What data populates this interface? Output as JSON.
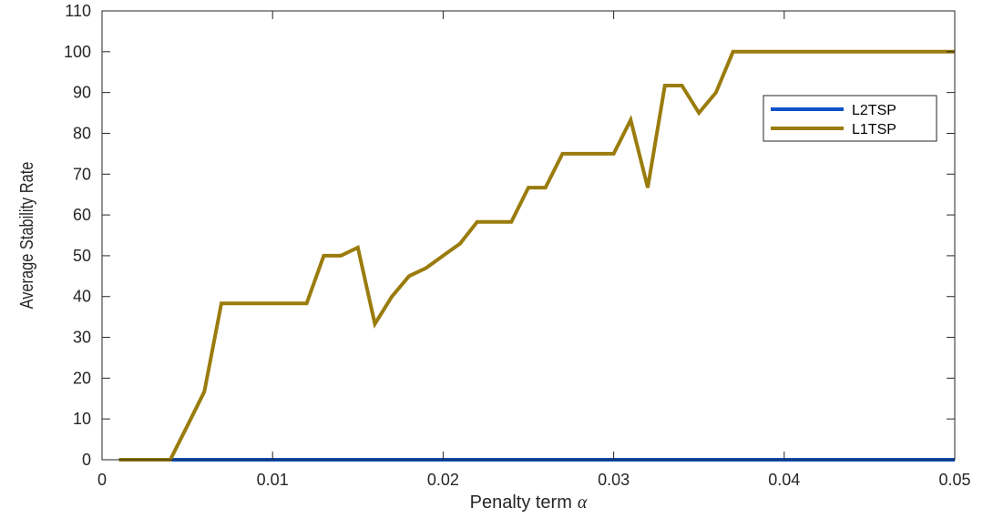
{
  "chart_data": {
    "type": "line",
    "xlabel": "Penalty term",
    "xlabel_symbol": "α",
    "ylabel": "Average Stability Rate",
    "xlim": [
      0,
      0.05
    ],
    "ylim": [
      0,
      110
    ],
    "x_ticks": [
      0,
      0.01,
      0.02,
      0.03,
      0.04,
      0.05
    ],
    "x_tick_labels": [
      "0",
      "0.01",
      "0.02",
      "0.03",
      "0.04",
      "0.05"
    ],
    "y_ticks": [
      0,
      10,
      20,
      30,
      40,
      50,
      60,
      70,
      80,
      90,
      100,
      110
    ],
    "y_tick_labels": [
      "0",
      "10",
      "20",
      "30",
      "40",
      "50",
      "60",
      "70",
      "80",
      "90",
      "100",
      "110"
    ],
    "grid": false,
    "legend_position": "top-right",
    "x": [
      0.001,
      0.002,
      0.003,
      0.004,
      0.005,
      0.006,
      0.007,
      0.008,
      0.009,
      0.01,
      0.011,
      0.012,
      0.013,
      0.014,
      0.015,
      0.016,
      0.017,
      0.018,
      0.019,
      0.02,
      0.021,
      0.022,
      0.023,
      0.024,
      0.025,
      0.026,
      0.027,
      0.028,
      0.029,
      0.03,
      0.031,
      0.032,
      0.033,
      0.034,
      0.035,
      0.036,
      0.037,
      0.038,
      0.039,
      0.04,
      0.041,
      0.042,
      0.043,
      0.044,
      0.045,
      0.046,
      0.047,
      0.048,
      0.049,
      0.05
    ],
    "series": [
      {
        "name": "L2TSP",
        "color": "#0a50c8",
        "values": [
          0,
          0,
          0,
          0,
          0,
          0,
          0,
          0,
          0,
          0,
          0,
          0,
          0,
          0,
          0,
          0,
          0,
          0,
          0,
          0,
          0,
          0,
          0,
          0,
          0,
          0,
          0,
          0,
          0,
          0,
          0,
          0,
          0,
          0,
          0,
          0,
          0,
          0,
          0,
          0,
          0,
          0,
          0,
          0,
          0,
          0,
          0,
          0,
          0,
          0
        ]
      },
      {
        "name": "L1TSP",
        "color": "#9a7c0d",
        "values": [
          0,
          0,
          0,
          0,
          8.3,
          16.7,
          38.3,
          38.3,
          38.3,
          38.3,
          38.3,
          38.3,
          50,
          50,
          52,
          33.3,
          40,
          45,
          47,
          50,
          53,
          58.3,
          58.3,
          58.3,
          66.7,
          66.7,
          75,
          75,
          75,
          75,
          83.3,
          66.7,
          91.7,
          91.7,
          85,
          90,
          100,
          100,
          100,
          100,
          100,
          100,
          100,
          100,
          100,
          100,
          100,
          100,
          100,
          100
        ]
      }
    ]
  }
}
